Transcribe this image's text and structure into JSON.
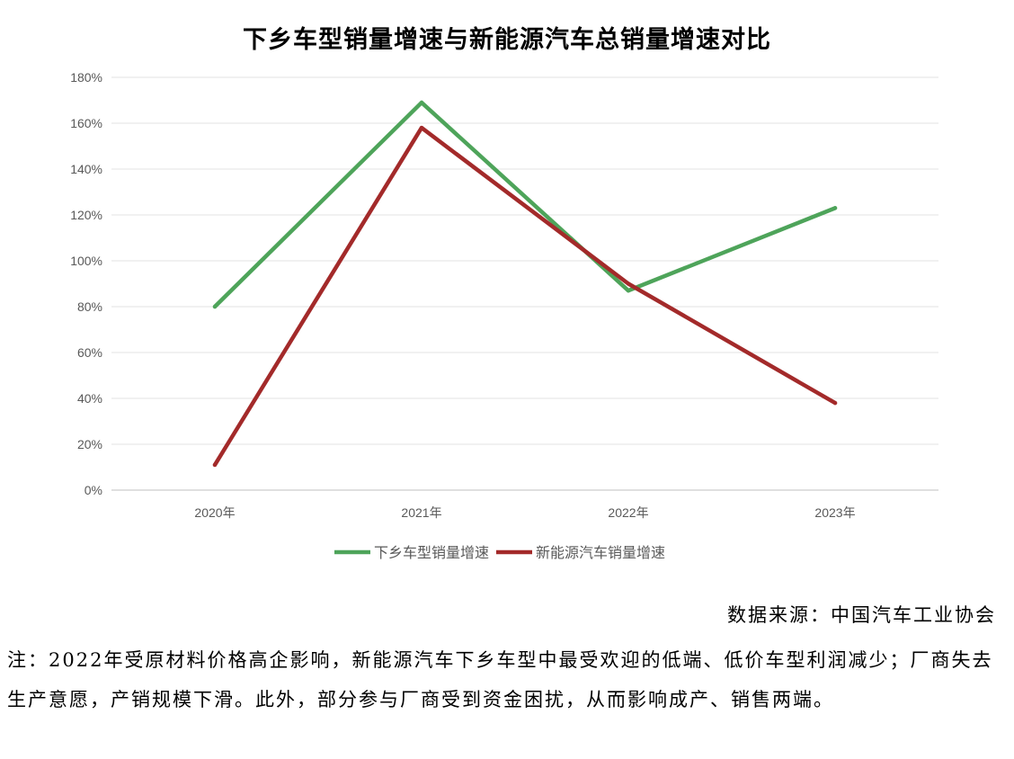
{
  "chart_data": {
    "type": "line",
    "title": "下乡车型销量增速与新能源汽车总销量增速对比",
    "categories": [
      "2020年",
      "2021年",
      "2022年",
      "2023年"
    ],
    "ylim": [
      0,
      180
    ],
    "yticks": [
      "0%",
      "20%",
      "40%",
      "60%",
      "80%",
      "100%",
      "120%",
      "140%",
      "160%",
      "180%"
    ],
    "grid": true,
    "legend_position": "bottom",
    "series": [
      {
        "name": "下乡车型销量增速",
        "values": [
          80,
          169,
          87,
          123
        ],
        "color": "#4ea45a"
      },
      {
        "name": "新能源汽车销量增速",
        "values": [
          11,
          158,
          90,
          38
        ],
        "color": "#a32a2a"
      }
    ]
  },
  "source": "数据来源：中国汽车工业协会",
  "note": "注：2022年受原材料价格高企影响，新能源汽车下乡车型中最受欢迎的低端、低价车型利润减少；厂商失去生产意愿，产销规模下滑。此外，部分参与厂商受到资金困扰，从而影响成产、销售两端。"
}
